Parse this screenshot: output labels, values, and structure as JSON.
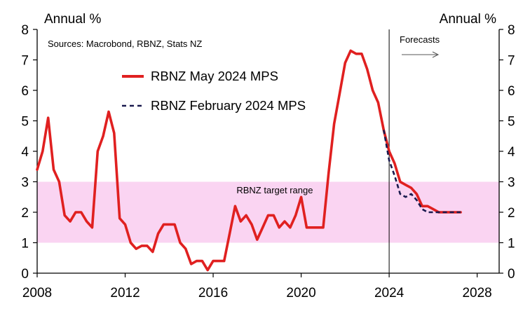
{
  "chart_data": {
    "type": "line",
    "title": "",
    "left_unit_label": "Annual %",
    "right_unit_label": "Annual %",
    "source_note": "Sources: Macrobond, RBNZ, Stats NZ",
    "forecast_label": "Forecasts",
    "forecast_start_x": 2024.0,
    "band": {
      "label": "RBNZ target range",
      "y_from": 1,
      "y_to": 3,
      "color": "#fad4f2"
    },
    "xlim": [
      2008,
      2029
    ],
    "ylim": [
      0,
      8
    ],
    "x_ticks": [
      2008,
      2012,
      2016,
      2020,
      2024,
      2028
    ],
    "x_tick_labels": [
      "2008",
      "2012",
      "2016",
      "2020",
      "2024",
      "2028"
    ],
    "y_ticks": [
      0,
      1,
      2,
      3,
      4,
      5,
      6,
      7,
      8
    ],
    "y_tick_labels": [
      "0",
      "1",
      "2",
      "3",
      "4",
      "5",
      "6",
      "7",
      "8"
    ],
    "series": [
      {
        "name": "RBNZ May 2024 MPS",
        "style": "solid",
        "color": "#e02020",
        "x": [
          2008.0,
          2008.25,
          2008.5,
          2008.75,
          2009.0,
          2009.25,
          2009.5,
          2009.75,
          2010.0,
          2010.25,
          2010.5,
          2010.75,
          2011.0,
          2011.25,
          2011.5,
          2011.75,
          2012.0,
          2012.25,
          2012.5,
          2012.75,
          2013.0,
          2013.25,
          2013.5,
          2013.75,
          2014.0,
          2014.25,
          2014.5,
          2014.75,
          2015.0,
          2015.25,
          2015.5,
          2015.75,
          2016.0,
          2016.25,
          2016.5,
          2016.75,
          2017.0,
          2017.25,
          2017.5,
          2017.75,
          2018.0,
          2018.25,
          2018.5,
          2018.75,
          2019.0,
          2019.25,
          2019.5,
          2019.75,
          2020.0,
          2020.25,
          2020.5,
          2020.75,
          2021.0,
          2021.25,
          2021.5,
          2021.75,
          2022.0,
          2022.25,
          2022.5,
          2022.75,
          2023.0,
          2023.25,
          2023.5,
          2023.75,
          2024.0,
          2024.25,
          2024.5,
          2024.75,
          2025.0,
          2025.25,
          2025.5,
          2025.75,
          2026.0,
          2026.25,
          2026.5,
          2026.75,
          2027.0,
          2027.25
        ],
        "values": [
          3.4,
          4.0,
          5.1,
          3.4,
          3.0,
          1.9,
          1.7,
          2.0,
          2.0,
          1.7,
          1.5,
          4.0,
          4.5,
          5.3,
          4.6,
          1.8,
          1.6,
          1.0,
          0.8,
          0.9,
          0.9,
          0.7,
          1.3,
          1.6,
          1.6,
          1.6,
          1.0,
          0.8,
          0.3,
          0.4,
          0.4,
          0.1,
          0.4,
          0.4,
          0.4,
          1.3,
          2.2,
          1.7,
          1.9,
          1.6,
          1.1,
          1.5,
          1.9,
          1.9,
          1.5,
          1.7,
          1.5,
          1.9,
          2.5,
          1.5,
          1.5,
          1.5,
          1.5,
          3.3,
          4.9,
          5.9,
          6.9,
          7.3,
          7.2,
          7.2,
          6.7,
          6.0,
          5.6,
          4.7,
          4.0,
          3.6,
          3.0,
          2.9,
          2.8,
          2.6,
          2.2,
          2.2,
          2.1,
          2.0,
          2.0,
          2.0,
          2.0,
          2.0
        ]
      },
      {
        "name": "RBNZ February 2024 MPS",
        "style": "dashed",
        "color": "#1a1a4e",
        "x": [
          2023.75,
          2024.0,
          2024.25,
          2024.5,
          2024.75,
          2025.0,
          2025.25,
          2025.5,
          2025.75,
          2026.0,
          2026.25,
          2026.5,
          2026.75,
          2027.0,
          2027.25
        ],
        "values": [
          4.7,
          3.7,
          3.2,
          2.6,
          2.5,
          2.6,
          2.4,
          2.1,
          2.0,
          2.0,
          2.0,
          2.0,
          2.0,
          2.0,
          2.0
        ]
      }
    ]
  }
}
